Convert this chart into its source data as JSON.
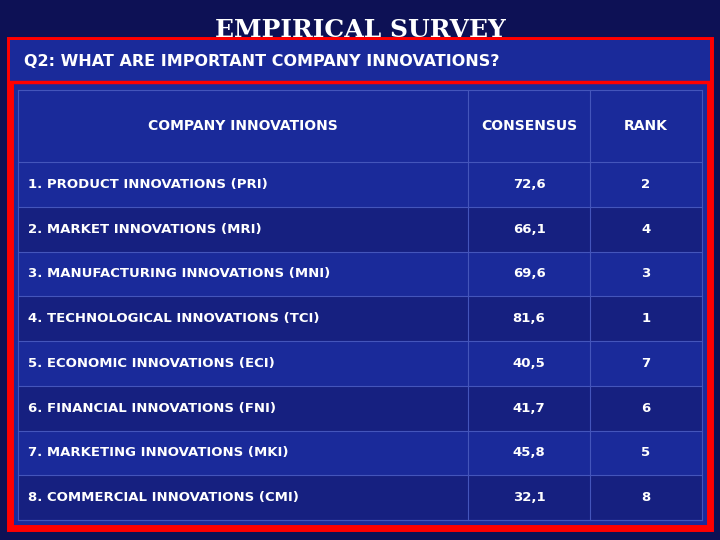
{
  "title": "EMPIRICAL SURVEY",
  "question": "Q2: WHAT ARE IMPORTANT COMPANY INNOVATIONS?",
  "col_headers": [
    "COMPANY INNOVATIONS",
    "CONSENSUS",
    "RANK"
  ],
  "rows": [
    [
      "1. PRODUCT INNOVATIONS (PRI)",
      "72,6",
      "2"
    ],
    [
      "2. MARKET INNOVATIONS (MRI)",
      "66,1",
      "4"
    ],
    [
      "3. MANUFACTURING INNOVATIONS (MNI)",
      "69,6",
      "3"
    ],
    [
      "4. TECHNOLOGICAL INNOVATIONS (TCI)",
      "81,6",
      "1"
    ],
    [
      "5. ECONOMIC INNOVATIONS (ECI)",
      "40,5",
      "7"
    ],
    [
      "6. FINANCIAL INNOVATIONS (FNI)",
      "41,7",
      "6"
    ],
    [
      "7. MARKETING INNOVATIONS (MKI)",
      "45,8",
      "5"
    ],
    [
      "8. COMMERCIAL INNOVATIONS (CMI)",
      "32,1",
      "8"
    ]
  ],
  "bg_outer": "#0d1155",
  "bg_table": "#1a2a9a",
  "border_color": "#ff0000",
  "row_bg_alt": "#162080",
  "text_color": "#ffffff",
  "title_color": "#ffffff",
  "grid_color": "#4455bb",
  "title_fontsize": 18,
  "question_fontsize": 11.5,
  "header_fontsize": 10,
  "row_fontsize": 9.5
}
